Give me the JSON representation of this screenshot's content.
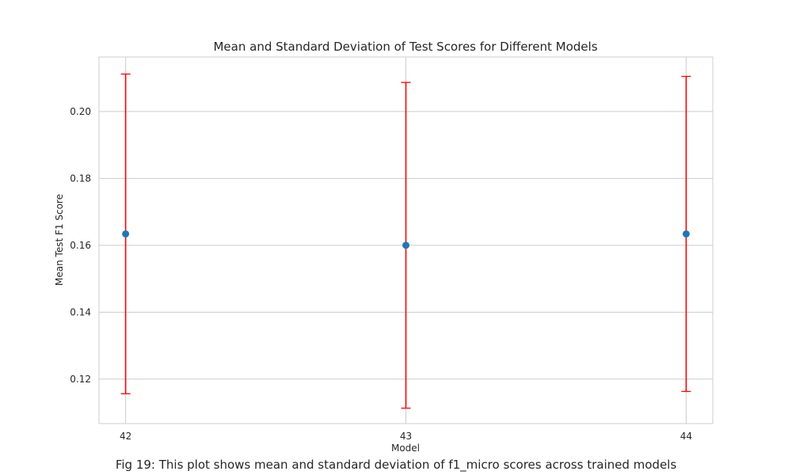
{
  "chart_data": {
    "type": "scatter",
    "title": "Mean and Standard Deviation of Test Scores for Different Models",
    "xlabel": "Model",
    "ylabel": "Mean Test F1 Score",
    "x": [
      42,
      43,
      44
    ],
    "x_tick_labels": [
      "42",
      "43",
      "44"
    ],
    "xlim": [
      41.905,
      44.095
    ],
    "series": [
      {
        "values": [
          0.1634,
          0.16,
          0.1634
        ],
        "std": [
          0.0478,
          0.0487,
          0.0471
        ]
      }
    ],
    "y_ticks": [
      0.12,
      0.14,
      0.16,
      0.18,
      0.2
    ],
    "y_tick_labels": [
      "0.12",
      "0.14",
      "0.16",
      "0.18",
      "0.20"
    ],
    "ylim": [
      0.1067,
      0.2163
    ],
    "grid": true,
    "legend": "none",
    "colors": {
      "point": "#1f77b4",
      "errorbar": "#ff0000",
      "grid": "#cccccc",
      "spine": "#cccccc"
    }
  },
  "caption": "Fig 19: This plot shows mean and standard deviation of f1_micro scores across trained models"
}
